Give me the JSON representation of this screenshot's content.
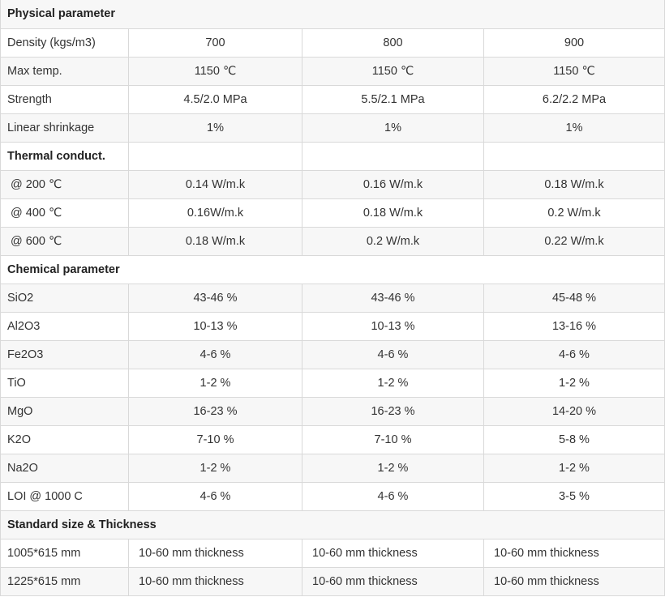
{
  "physical": {
    "heading": "Physical parameter",
    "rows": [
      {
        "label": "Density (kgs/m3)",
        "v1": "700",
        "v2": "800",
        "v3": "900"
      },
      {
        "label": "Max temp.",
        "v1": "1150 ℃",
        "v2": "1150 ℃",
        "v3": "1150 ℃"
      },
      {
        "label": "Strength",
        "v1": "4.5/2.0 MPa",
        "v2": "5.5/2.1 MPa",
        "v3": "6.2/2.2 MPa"
      },
      {
        "label": "Linear shrinkage",
        "v1": "1%",
        "v2": "1%",
        "v3": "1%"
      }
    ]
  },
  "thermal": {
    "heading": "Thermal conduct.",
    "rows": [
      {
        "label": " @ 200 ℃",
        "v1": "0.14 W/m.k",
        "v2": "0.16 W/m.k",
        "v3": "0.18 W/m.k"
      },
      {
        "label": " @ 400 ℃",
        "v1": "0.16W/m.k",
        "v2": "0.18 W/m.k",
        "v3": "0.2 W/m.k"
      },
      {
        "label": " @ 600 ℃",
        "v1": "0.18 W/m.k",
        "v2": "0.2 W/m.k",
        "v3": "0.22 W/m.k"
      }
    ]
  },
  "chemical": {
    "heading": "Chemical parameter",
    "rows": [
      {
        "label": "SiO2",
        "v1": "43-46 %",
        "v2": "43-46 %",
        "v3": "45-48 %"
      },
      {
        "label": "Al2O3",
        "v1": "10-13 %",
        "v2": "10-13 %",
        "v3": "13-16 %"
      },
      {
        "label": "Fe2O3",
        "v1": "4-6 %",
        "v2": "4-6 %",
        "v3": "4-6 %"
      },
      {
        "label": "TiO",
        "v1": "1-2 %",
        "v2": "1-2 %",
        "v3": "1-2 %"
      },
      {
        "label": "MgO",
        "v1": "16-23 %",
        "v2": "16-23 %",
        "v3": "14-20 %"
      },
      {
        "label": "K2O",
        "v1": "7-10 %",
        "v2": "7-10 %",
        "v3": "5-8 %"
      },
      {
        "label": "Na2O",
        "v1": "1-2 %",
        "v2": "1-2 %",
        "v3": "1-2 %"
      },
      {
        "label": "LOI @ 1000 C",
        "v1": "4-6 %",
        "v2": "4-6 %",
        "v3": "3-5 %"
      }
    ]
  },
  "size": {
    "heading": "Standard size & Thickness",
    "rows": [
      {
        "label": "1005*615 mm",
        "v1": "10-60 mm thickness",
        "v2": "10-60 mm thickness",
        "v3": "10-60 mm thickness"
      },
      {
        "label": "1225*615 mm",
        "v1": "10-60 mm thickness",
        "v2": "10-60 mm thickness",
        "v3": "10-60 mm thickness"
      }
    ]
  }
}
